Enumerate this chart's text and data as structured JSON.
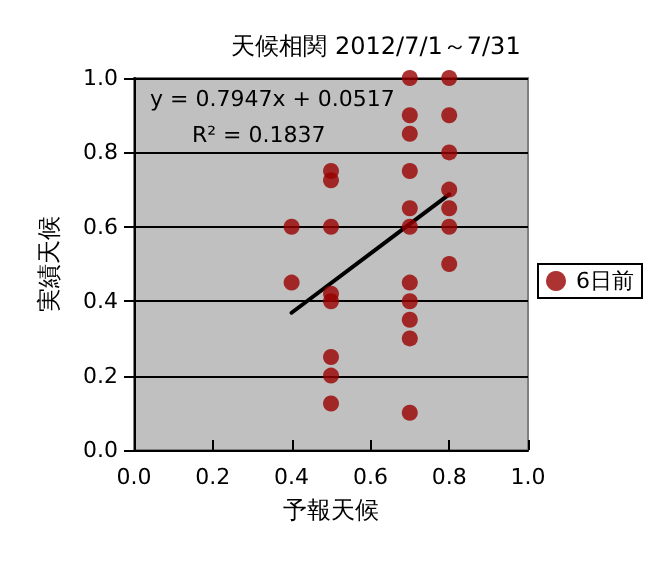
{
  "chart_data": {
    "type": "scatter",
    "title": "天候相関 2012/7/1～7/31",
    "xlabel": "予報天候",
    "ylabel": "実績天候",
    "xlim": [
      0,
      1
    ],
    "xticks": [
      {
        "value": 0,
        "label": "0.0"
      },
      {
        "value": 0.2,
        "label": "0.2"
      },
      {
        "value": 0.4,
        "label": "0.4"
      },
      {
        "value": 0.6,
        "label": "0.6"
      },
      {
        "value": 0.8,
        "label": "0.8"
      },
      {
        "value": 1,
        "label": "1.0"
      }
    ],
    "ylim": [
      0,
      1
    ],
    "yticks": [
      {
        "value": 0,
        "label": "0.0"
      },
      {
        "value": 0.2,
        "label": "0.2"
      },
      {
        "value": 0.4,
        "label": "0.4"
      },
      {
        "value": 0.6,
        "label": "0.6"
      },
      {
        "value": 0.8,
        "label": "0.8"
      },
      {
        "value": 1,
        "label": "1.0"
      }
    ],
    "grid": "y",
    "legend": "right",
    "marker": "circle",
    "annotations": [
      "y = 0.7947x + 0.0517",
      "R² = 0.1837"
    ],
    "series": [
      {
        "name": "6日前",
        "color": "#990000",
        "x": [
          0.4,
          0.4,
          0.5,
          0.5,
          0.5,
          0.5,
          0.5,
          0.5,
          0.5,
          0.5,
          0.7,
          0.7,
          0.7,
          0.7,
          0.7,
          0.7,
          0.7,
          0.7,
          0.7,
          0.7,
          0.7,
          0.8,
          0.8,
          0.8,
          0.8,
          0.8,
          0.8,
          0.8
        ],
        "values": [
          0.6,
          0.45,
          0.75,
          0.725,
          0.6,
          0.42,
          0.4,
          0.25,
          0.2,
          0.125,
          1.0,
          0.9,
          0.85,
          0.75,
          0.65,
          0.6,
          0.45,
          0.4,
          0.35,
          0.3,
          0.1,
          1.0,
          0.9,
          0.8,
          0.7,
          0.65,
          0.6,
          0.5
        ]
      },
      {
        "type": "line",
        "color": "#000000",
        "x": [
          0.4,
          0.8
        ],
        "values": [
          0.369,
          0.687
        ],
        "marker": "none",
        "line_style": "solid"
      }
    ]
  }
}
